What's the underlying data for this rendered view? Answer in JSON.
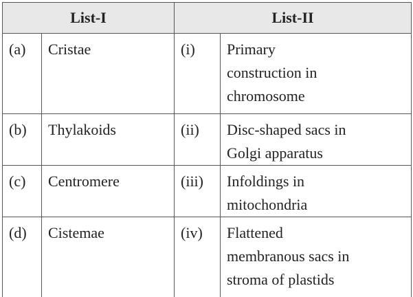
{
  "table": {
    "header": [
      "List-I",
      "List-II"
    ],
    "rows": [
      [
        [
          "(a)"
        ],
        [
          "Cristae"
        ],
        [
          "(i)"
        ],
        [
          "Primary",
          "construction in",
          "chromosome"
        ]
      ],
      [
        [
          "(b)"
        ],
        [
          "Thylakoids"
        ],
        [
          "(ii)"
        ],
        [
          "Disc-shaped sacs in",
          "Golgi apparatus"
        ]
      ],
      [
        [
          "(c)"
        ],
        [
          "Centromere"
        ],
        [
          "(iii)"
        ],
        [
          "Infoldings in",
          "mitochondria"
        ]
      ],
      [
        [
          "(d)"
        ],
        [
          "Cistemae"
        ],
        [
          "(iv)"
        ],
        [
          "Flattened",
          "membranous sacs in",
          "stroma of plastids"
        ]
      ]
    ]
  }
}
